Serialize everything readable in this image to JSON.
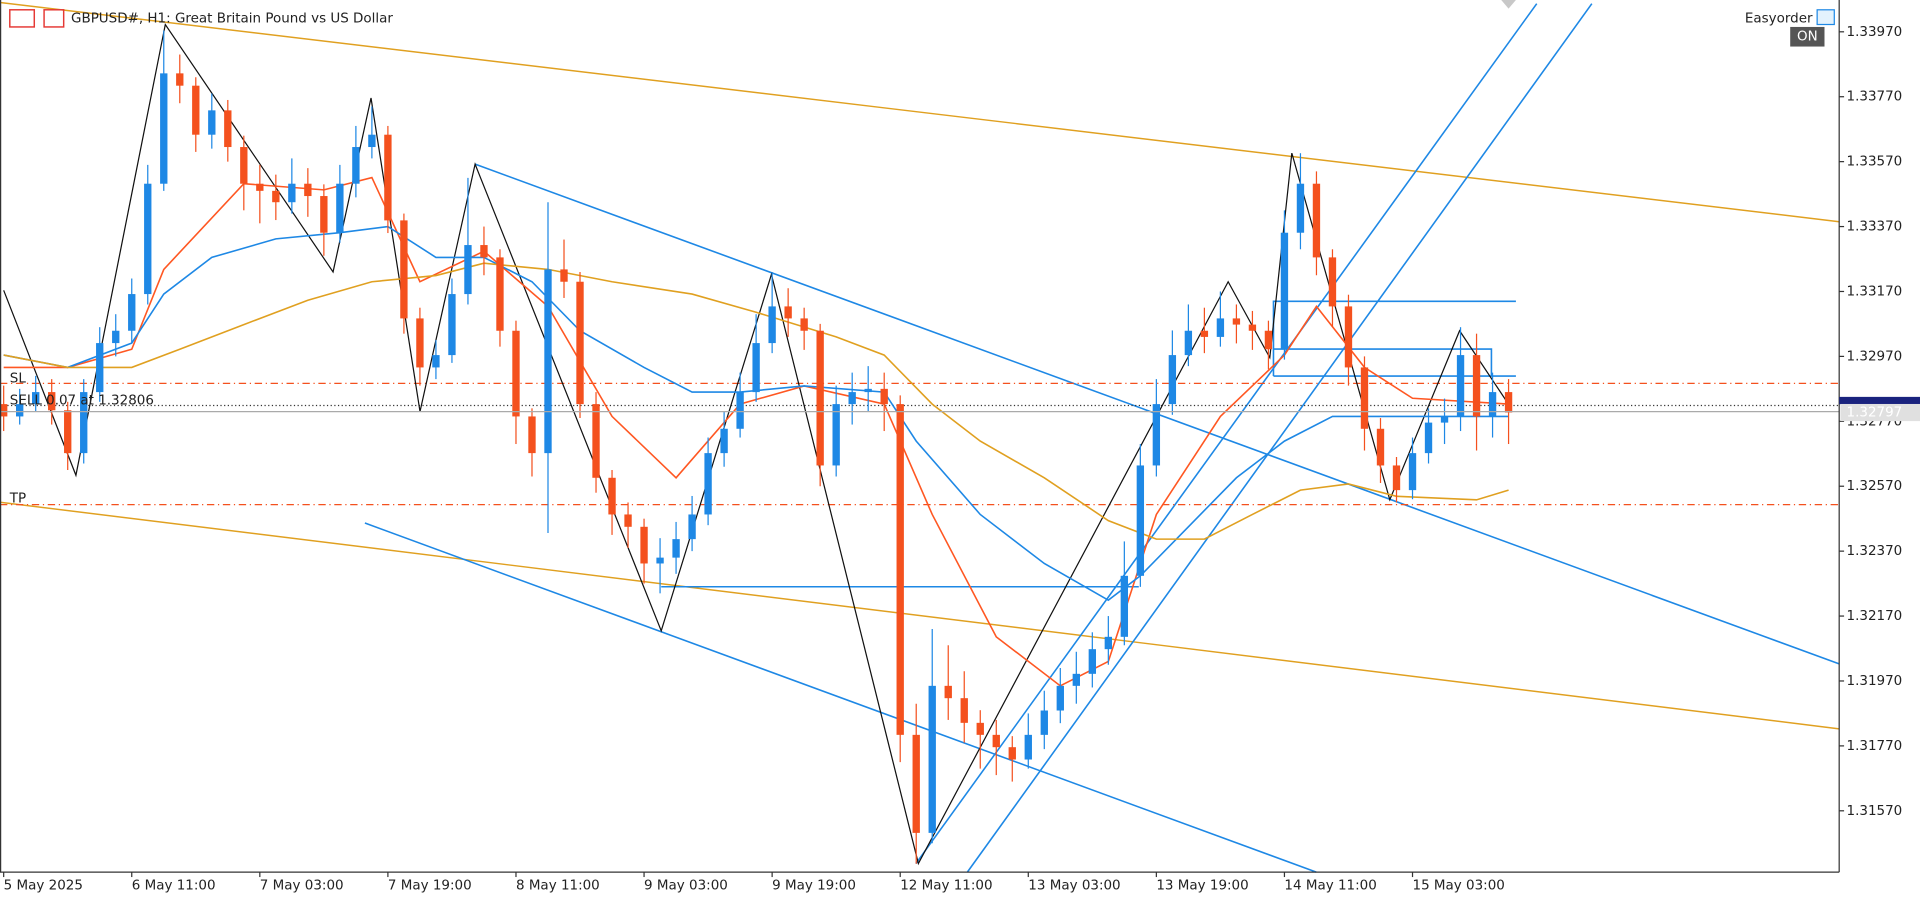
{
  "chart_data": {
    "type": "candlestick",
    "title": "GBPUSD#, H1:  Great Britain Pound vs US Dollar",
    "expert": "Easyorder",
    "expert_state": "ON",
    "levels": {
      "sl": "SL",
      "order": "SELL 0.07 at 1.32806",
      "tp": "TP"
    },
    "current_price": {
      "value": 1.32797,
      "label": "1.32797"
    },
    "colors": {
      "up": "#1e88e5",
      "down": "#f4511e"
    },
    "ylim": [
      1.31381,
      1.34068
    ],
    "yticks": [
      {
        "value": 1.3397,
        "label": "1.33970"
      },
      {
        "value": 1.3377,
        "label": "1.33770"
      },
      {
        "value": 1.3357,
        "label": "1.33570"
      },
      {
        "value": 1.3337,
        "label": "1.33370"
      },
      {
        "value": 1.3317,
        "label": "1.33170"
      },
      {
        "value": 1.3297,
        "label": "1.32970"
      },
      {
        "value": 1.3277,
        "label": "1.32770"
      },
      {
        "value": 1.3257,
        "label": "1.32570"
      },
      {
        "value": 1.3237,
        "label": "1.32370"
      },
      {
        "value": 1.3217,
        "label": "1.32170"
      },
      {
        "value": 1.3197,
        "label": "1.31970"
      },
      {
        "value": 1.3177,
        "label": "1.31770"
      },
      {
        "value": 1.3157,
        "label": "1.31570"
      }
    ],
    "categories": [
      "5 May 2025",
      null,
      null,
      null,
      null,
      null,
      null,
      null,
      "6 May 11:00",
      null,
      null,
      null,
      null,
      null,
      null,
      null,
      "7 May 03:00",
      null,
      null,
      null,
      null,
      null,
      null,
      null,
      "7 May 19:00",
      null,
      null,
      null,
      null,
      null,
      null,
      null,
      "8 May 11:00",
      null,
      null,
      null,
      null,
      null,
      null,
      null,
      "9 May 03:00",
      null,
      null,
      null,
      null,
      null,
      null,
      null,
      "9 May 19:00",
      null,
      null,
      null,
      null,
      null,
      null,
      null,
      "12 May 11:00",
      null,
      null,
      null,
      null,
      null,
      null,
      null,
      "13 May 03:00",
      null,
      null,
      null,
      null,
      null,
      null,
      null,
      "13 May 19:00",
      null,
      null,
      null,
      null,
      null,
      null,
      null,
      "14 May 11:00",
      null,
      null,
      null,
      null,
      null,
      null,
      null,
      "15 May 03:00",
      null,
      null,
      null,
      null,
      null,
      null
    ],
    "candles": [
      [
        1.32823,
        1.3288,
        1.3274,
        1.32785
      ],
      [
        1.32785,
        1.3287,
        1.3276,
        1.32823
      ],
      [
        1.32823,
        1.3291,
        1.328,
        1.3286
      ],
      [
        1.3286,
        1.329,
        1.3276,
        1.32804
      ],
      [
        1.32804,
        1.3283,
        1.3262,
        1.32672
      ],
      [
        1.32672,
        1.329,
        1.3264,
        1.3286
      ],
      [
        1.3286,
        1.3306,
        1.3283,
        1.33011
      ],
      [
        1.33011,
        1.331,
        1.3297,
        1.33049
      ],
      [
        1.33049,
        1.3321,
        1.3301,
        1.33162
      ],
      [
        1.33162,
        1.3356,
        1.3313,
        1.33502
      ],
      [
        1.33502,
        1.33974,
        1.3348,
        1.33842
      ],
      [
        1.33842,
        1.339,
        1.3375,
        1.33804
      ],
      [
        1.33804,
        1.3383,
        1.336,
        1.33653
      ],
      [
        1.33653,
        1.3378,
        1.3361,
        1.33728
      ],
      [
        1.33728,
        1.3376,
        1.3357,
        1.33615
      ],
      [
        1.33615,
        1.3365,
        1.3342,
        1.33502
      ],
      [
        1.33502,
        1.3356,
        1.3338,
        1.3348
      ],
      [
        1.3348,
        1.3353,
        1.3339,
        1.33445
      ],
      [
        1.33445,
        1.3358,
        1.3341,
        1.33502
      ],
      [
        1.33502,
        1.3355,
        1.334,
        1.33464
      ],
      [
        1.33464,
        1.335,
        1.3328,
        1.33351
      ],
      [
        1.33351,
        1.3356,
        1.3332,
        1.33502
      ],
      [
        1.33502,
        1.3368,
        1.3346,
        1.33615
      ],
      [
        1.33615,
        1.3374,
        1.3358,
        1.33653
      ],
      [
        1.33653,
        1.3368,
        1.3335,
        1.33389
      ],
      [
        1.33389,
        1.3341,
        1.3304,
        1.33087
      ],
      [
        1.33087,
        1.3312,
        1.3288,
        1.32936
      ],
      [
        1.32936,
        1.3302,
        1.329,
        1.32974
      ],
      [
        1.32974,
        1.3321,
        1.3295,
        1.33162
      ],
      [
        1.33162,
        1.3352,
        1.3313,
        1.33313
      ],
      [
        1.33313,
        1.3337,
        1.3322,
        1.33275
      ],
      [
        1.33275,
        1.333,
        1.33,
        1.33049
      ],
      [
        1.33049,
        1.3308,
        1.327,
        1.32785
      ],
      [
        1.32785,
        1.3281,
        1.326,
        1.32672
      ],
      [
        1.32672,
        1.33445,
        1.32426,
        1.33238
      ],
      [
        1.33238,
        1.3333,
        1.3315,
        1.332
      ],
      [
        1.332,
        1.3323,
        1.3278,
        1.32823
      ],
      [
        1.32823,
        1.3286,
        1.3255,
        1.32596
      ],
      [
        1.32596,
        1.3262,
        1.3242,
        1.32483
      ],
      [
        1.32483,
        1.3252,
        1.3238,
        1.32445
      ],
      [
        1.32445,
        1.3247,
        1.3227,
        1.32332
      ],
      [
        1.32332,
        1.3241,
        1.3224,
        1.3235
      ],
      [
        1.3235,
        1.3246,
        1.323,
        1.32407
      ],
      [
        1.32407,
        1.3254,
        1.3237,
        1.32483
      ],
      [
        1.32483,
        1.3272,
        1.3245,
        1.32672
      ],
      [
        1.32672,
        1.328,
        1.3263,
        1.32747
      ],
      [
        1.32747,
        1.3292,
        1.3272,
        1.3286
      ],
      [
        1.3286,
        1.331,
        1.3283,
        1.33011
      ],
      [
        1.33011,
        1.3323,
        1.3298,
        1.33124
      ],
      [
        1.33124,
        1.3318,
        1.3303,
        1.33087
      ],
      [
        1.33087,
        1.3312,
        1.3299,
        1.33049
      ],
      [
        1.33049,
        1.3307,
        1.3257,
        1.32634
      ],
      [
        1.32634,
        1.3288,
        1.326,
        1.32823
      ],
      [
        1.32823,
        1.3292,
        1.3276,
        1.3286
      ],
      [
        1.3286,
        1.3294,
        1.328,
        1.3287
      ],
      [
        1.3287,
        1.3292,
        1.3274,
        1.32823
      ],
      [
        1.32823,
        1.3285,
        1.3172,
        1.31804
      ],
      [
        1.31804,
        1.319,
        1.31407,
        1.31502
      ],
      [
        1.31502,
        1.3213,
        1.3147,
        1.31955
      ],
      [
        1.31955,
        1.3208,
        1.3185,
        1.31917
      ],
      [
        1.31917,
        1.32,
        1.3178,
        1.31841
      ],
      [
        1.31841,
        1.3188,
        1.317,
        1.31804
      ],
      [
        1.31804,
        1.3185,
        1.3168,
        1.31766
      ],
      [
        1.31766,
        1.318,
        1.3166,
        1.31728
      ],
      [
        1.31728,
        1.3187,
        1.317,
        1.31804
      ],
      [
        1.31804,
        1.3194,
        1.3176,
        1.31879
      ],
      [
        1.31879,
        1.3201,
        1.3184,
        1.31955
      ],
      [
        1.31955,
        1.3206,
        1.319,
        1.31992
      ],
      [
        1.31992,
        1.3212,
        1.3195,
        1.32068
      ],
      [
        1.32068,
        1.3217,
        1.3202,
        1.32106
      ],
      [
        1.32106,
        1.324,
        1.3208,
        1.32294
      ],
      [
        1.32294,
        1.327,
        1.3226,
        1.32634
      ],
      [
        1.32634,
        1.329,
        1.326,
        1.32823
      ],
      [
        1.32823,
        1.3305,
        1.3279,
        1.32974
      ],
      [
        1.32974,
        1.3313,
        1.3294,
        1.33049
      ],
      [
        1.33049,
        1.3312,
        1.3298,
        1.3303
      ],
      [
        1.3303,
        1.3317,
        1.33,
        1.33087
      ],
      [
        1.33087,
        1.3313,
        1.3301,
        1.33068
      ],
      [
        1.33068,
        1.3311,
        1.3299,
        1.33049
      ],
      [
        1.33049,
        1.3308,
        1.3293,
        1.32992
      ],
      [
        1.32992,
        1.3342,
        1.3296,
        1.33351
      ],
      [
        1.33351,
        1.33596,
        1.333,
        1.33502
      ],
      [
        1.33502,
        1.3354,
        1.3322,
        1.33275
      ],
      [
        1.33275,
        1.333,
        1.3306,
        1.33124
      ],
      [
        1.33124,
        1.3316,
        1.3288,
        1.32936
      ],
      [
        1.32936,
        1.3297,
        1.3268,
        1.32747
      ],
      [
        1.32747,
        1.3278,
        1.3258,
        1.32634
      ],
      [
        1.32634,
        1.3266,
        1.3252,
        1.32558
      ],
      [
        1.32558,
        1.3272,
        1.3253,
        1.32672
      ],
      [
        1.32672,
        1.3281,
        1.3264,
        1.32766
      ],
      [
        1.32766,
        1.3284,
        1.327,
        1.32785
      ],
      [
        1.32785,
        1.3306,
        1.3274,
        1.32974
      ],
      [
        1.32974,
        1.3304,
        1.3268,
        1.32785
      ],
      [
        1.32785,
        1.3292,
        1.3272,
        1.3286
      ],
      [
        1.3286,
        1.329,
        1.327,
        1.32797
      ]
    ],
    "lines": [
      {
        "color": "#ff5722",
        "x": [
          0,
          4,
          8,
          10,
          15,
          20,
          23,
          26,
          30,
          34,
          38,
          42,
          46,
          50,
          55,
          58,
          62,
          66,
          69,
          72,
          76,
          80,
          82,
          85,
          88,
          94
        ],
        "values": [
          1.32936,
          1.32936,
          1.32992,
          1.33238,
          1.33502,
          1.33483,
          1.33521,
          1.332,
          1.33294,
          1.33124,
          1.32785,
          1.32596,
          1.32823,
          1.32879,
          1.32823,
          1.32483,
          1.32106,
          1.31955,
          1.3203,
          1.32483,
          1.32785,
          1.32974,
          1.33124,
          1.32936,
          1.32841,
          1.32823
        ]
      },
      {
        "color": "#1e88e5",
        "x": [
          0,
          4,
          8,
          10,
          13,
          17,
          21,
          24,
          27,
          30,
          33,
          36,
          40,
          43,
          46,
          50,
          55,
          57,
          61,
          65,
          69,
          71,
          74,
          77,
          80,
          83,
          86,
          94
        ],
        "values": [
          1.32974,
          1.32936,
          1.33011,
          1.33162,
          1.33275,
          1.33332,
          1.33351,
          1.3337,
          1.33275,
          1.33275,
          1.332,
          1.33049,
          1.32936,
          1.3286,
          1.3286,
          1.32879,
          1.3286,
          1.32709,
          1.32483,
          1.32332,
          1.32219,
          1.32294,
          1.32445,
          1.32596,
          1.32709,
          1.32785,
          1.32785,
          1.32785
        ]
      },
      {
        "color": "#e0a020",
        "x": [
          0,
          4,
          8,
          11,
          15,
          19,
          23,
          27,
          30,
          34,
          38,
          43,
          47,
          52,
          55,
          58,
          61,
          65,
          69,
          72,
          75,
          78,
          81,
          84,
          87,
          92,
          94
        ],
        "values": [
          1.32974,
          1.32936,
          1.32936,
          1.32992,
          1.33068,
          1.33143,
          1.332,
          1.33219,
          1.33257,
          1.33238,
          1.332,
          1.33162,
          1.33106,
          1.3303,
          1.32974,
          1.32823,
          1.32709,
          1.32596,
          1.32464,
          1.32407,
          1.32407,
          1.32483,
          1.32558,
          1.32577,
          1.32539,
          1.32528,
          1.32558
        ]
      }
    ]
  }
}
